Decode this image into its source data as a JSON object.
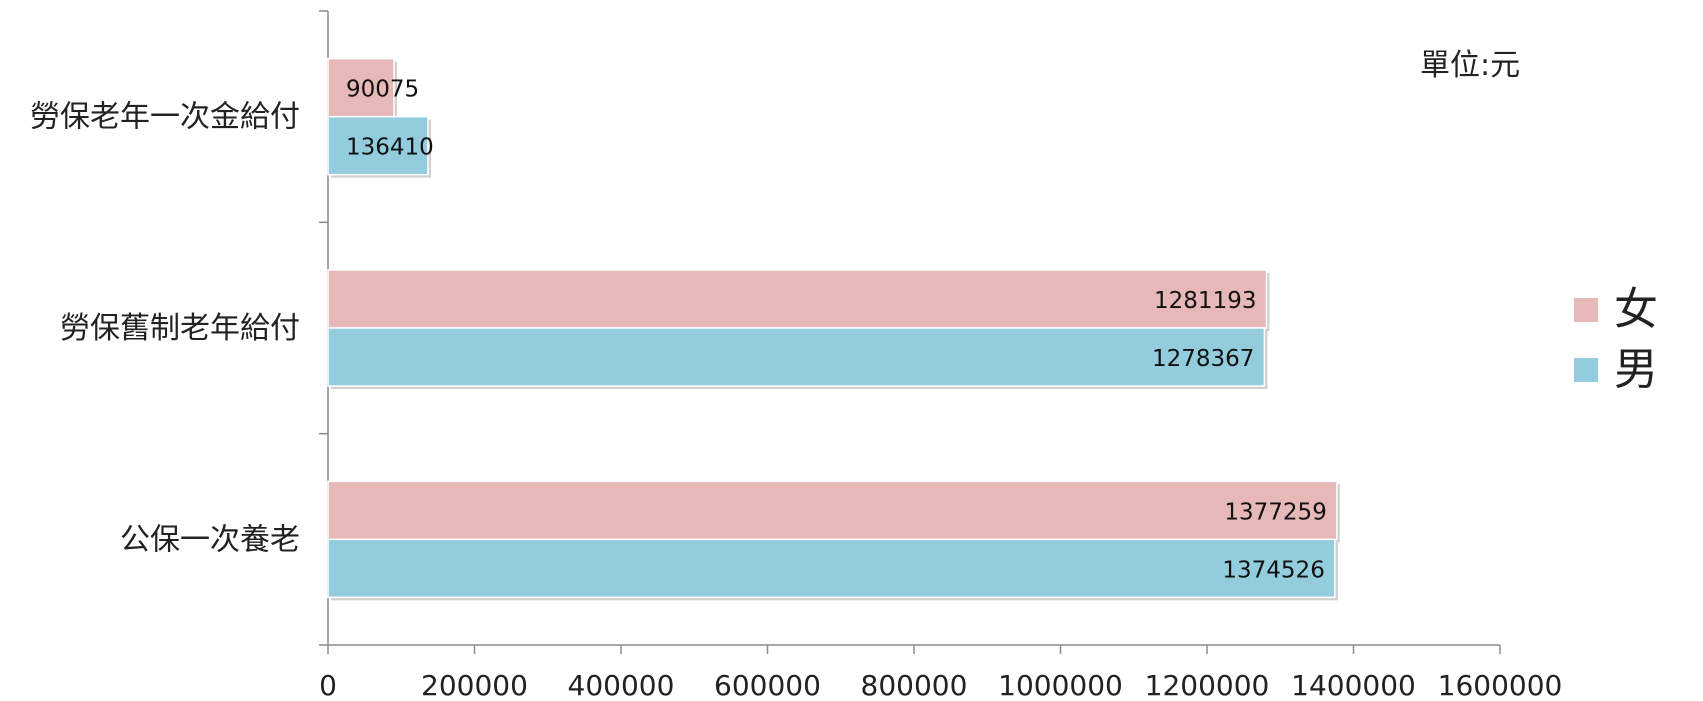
{
  "chart_data": {
    "type": "bar",
    "orientation": "horizontal",
    "categories": [
      "勞保老年一次金給付",
      "勞保舊制老年給付",
      "公保一次養老"
    ],
    "series": [
      {
        "name": "女",
        "values": [
          90075,
          1281193,
          1377259
        ],
        "color": "#e6b8b7"
      },
      {
        "name": "男",
        "values": [
          136410,
          1278367,
          1374526
        ],
        "color": "#93cddd"
      }
    ],
    "xlim": [
      0,
      1600000
    ],
    "x_ticks": [
      "0",
      "200000",
      "400000",
      "600000",
      "800000",
      "1000000",
      "1200000",
      "1400000",
      "1600000"
    ],
    "unit_label": "單位:元",
    "legend_position": "right",
    "grid": false
  }
}
